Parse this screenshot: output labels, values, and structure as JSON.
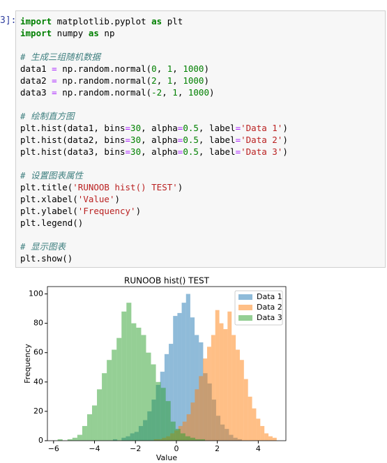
{
  "cell": {
    "prompt": "3]:",
    "code": [
      [
        "import matplotlib.pyplot as plt",
        "import numpy as np"
      ],
      [
        "# 生成三组随机数据",
        "data1 = np.random.normal(0, 1, 1000)",
        "data2 = np.random.normal(2, 1, 1000)",
        "data3 = np.random.normal(-2, 1, 1000)"
      ],
      [
        "# 绘制直方图",
        "plt.hist(data1, bins=30, alpha=0.5, label='Data 1')",
        "plt.hist(data2, bins=30, alpha=0.5, label='Data 2')",
        "plt.hist(data3, bins=30, alpha=0.5, label='Data 3')"
      ],
      [
        "# 设置图表属性",
        "plt.title('RUNOOB hist() TEST')",
        "plt.xlabel('Value')",
        "plt.ylabel('Frequency')",
        "plt.legend()"
      ],
      [
        "# 显示图表",
        "plt.show()"
      ]
    ]
  },
  "chart_data": {
    "type": "histogram",
    "title": "RUNOOB hist() TEST",
    "x_label": "Value",
    "y_label": "Frequency",
    "alpha": 0.5,
    "legend": "upper right",
    "xlim": [
      -6.3,
      5.35
    ],
    "ylim": [
      0,
      105
    ],
    "xticks": [
      {
        "value": -6,
        "label": "−6"
      },
      {
        "value": -4,
        "label": "−4"
      },
      {
        "value": -2,
        "label": "−2"
      },
      0,
      2,
      4
    ],
    "yticks": [
      0,
      20,
      40,
      60,
      80,
      100
    ],
    "series": [
      {
        "name": "Data 1",
        "color": "#1f77b4",
        "bins": [
          -3.1,
          -2.89,
          -2.68,
          -2.47,
          -2.26,
          -2.05,
          -1.84,
          -1.63,
          -1.42,
          -1.21,
          -1.0,
          -0.79,
          -0.58,
          -0.37,
          -0.16,
          0.05,
          0.26,
          0.47,
          0.68,
          0.89,
          1.1,
          1.31,
          1.52,
          1.73,
          1.94,
          2.15,
          2.36,
          2.57,
          2.78,
          2.99,
          3.2
        ],
        "values": [
          1,
          0,
          2,
          3,
          5,
          6,
          10,
          14,
          20,
          28,
          38,
          47,
          59,
          66,
          85,
          87,
          94,
          100,
          84,
          72,
          67,
          46,
          39,
          28,
          17,
          11,
          8,
          4,
          2,
          1
        ]
      },
      {
        "name": "Data 2",
        "color": "#ff7f0e",
        "bins": [
          -1.1,
          -0.9,
          -0.7,
          -0.5,
          -0.3,
          -0.1,
          0.1,
          0.3,
          0.5,
          0.7,
          0.9,
          1.1,
          1.3,
          1.5,
          1.7,
          1.9,
          2.1,
          2.3,
          2.5,
          2.7,
          2.9,
          3.1,
          3.3,
          3.5,
          3.7,
          3.9,
          4.1,
          4.3,
          4.5,
          4.7,
          4.9
        ],
        "values": [
          1,
          1,
          2,
          3,
          5,
          7,
          10,
          13,
          18,
          26,
          35,
          44,
          56,
          64,
          72,
          89,
          80,
          76,
          88,
          72,
          62,
          55,
          42,
          30,
          22,
          15,
          10,
          5,
          3,
          2
        ]
      },
      {
        "name": "Data 3",
        "color": "#2ca02c",
        "bins": [
          -5.8,
          -5.56,
          -5.32,
          -5.08,
          -4.84,
          -4.6,
          -4.36,
          -4.12,
          -3.88,
          -3.64,
          -3.4,
          -3.16,
          -2.92,
          -2.68,
          -2.44,
          -2.2,
          -1.96,
          -1.72,
          -1.48,
          -1.24,
          -1.0,
          -0.76,
          -0.52,
          -0.28,
          -0.04,
          0.2,
          0.44,
          0.68,
          0.92,
          1.16,
          1.4
        ],
        "values": [
          1,
          0,
          1,
          2,
          4,
          10,
          18,
          24,
          35,
          46,
          55,
          62,
          70,
          88,
          94,
          80,
          77,
          72,
          60,
          52,
          40,
          36,
          27,
          13,
          8,
          5,
          3,
          2,
          1,
          1
        ]
      }
    ]
  }
}
